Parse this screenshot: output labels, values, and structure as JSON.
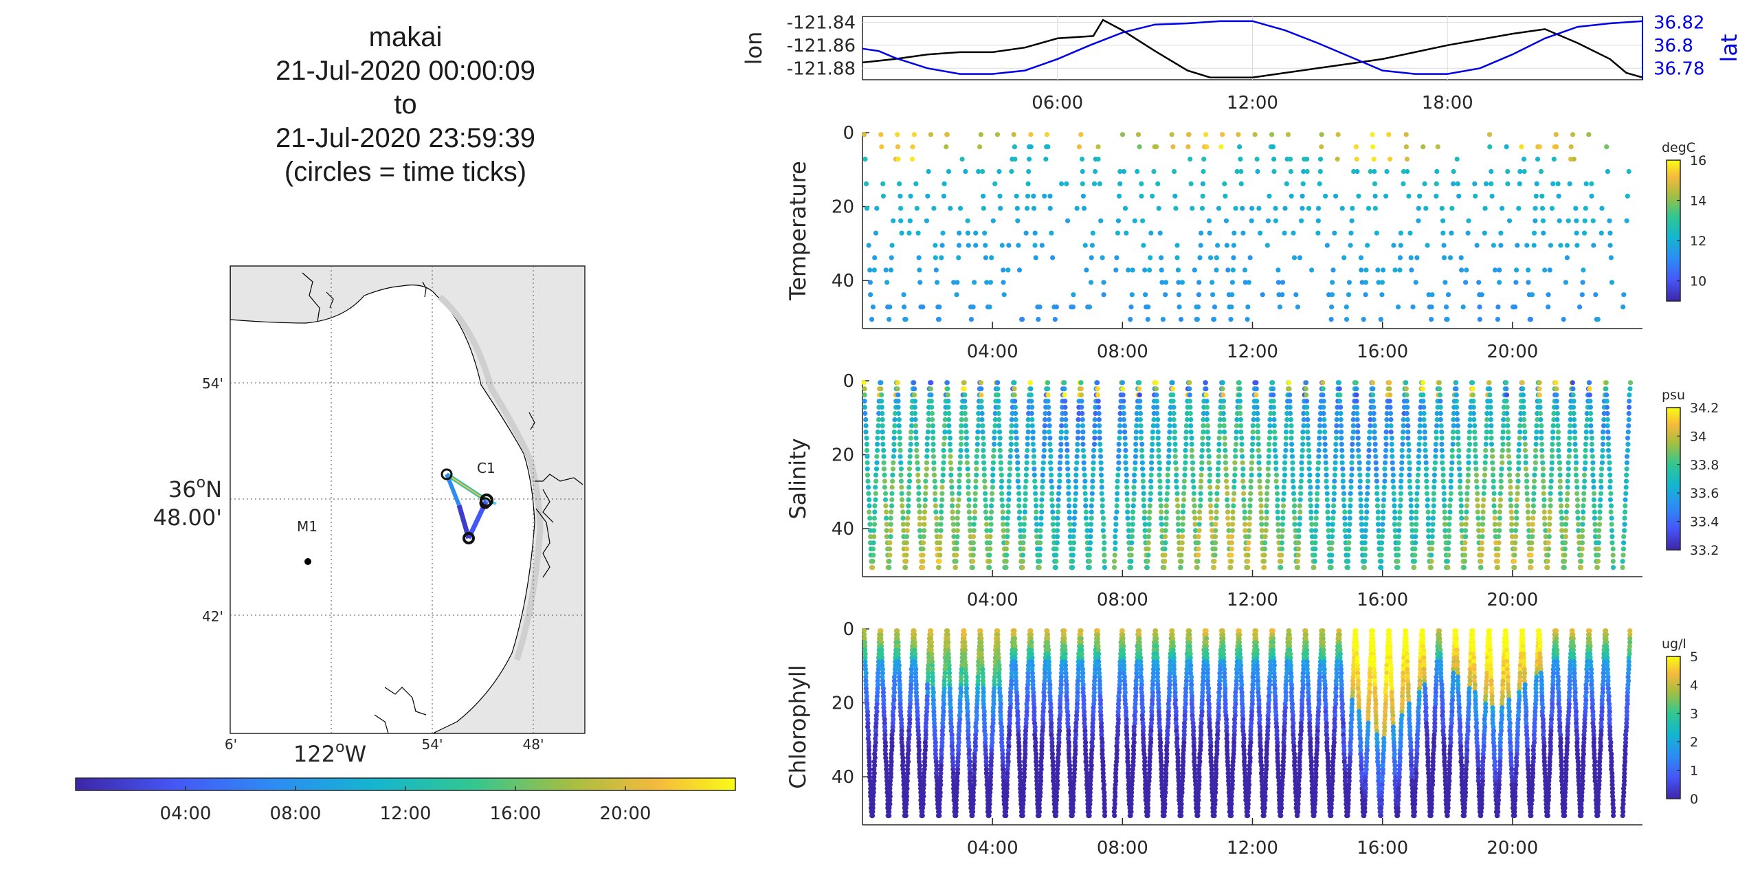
{
  "title_lines": [
    "makai",
    "21-Jul-2020 00:00:09",
    "to",
    "21-Jul-2020 23:59:39",
    "(circles = time ticks)"
  ],
  "map": {
    "lat_ticks": [
      "54'",
      "48.00'",
      "42'"
    ],
    "lat_main_label": "36",
    "lat_main_suffix": "N",
    "lat_deg_symbol": "o",
    "lon_ticks": [
      "6'",
      "54'",
      "48'"
    ],
    "lon_main_label": "122",
    "lon_main_suffix": "W",
    "lon_deg_symbol": "o",
    "stations": [
      {
        "name": "M1"
      },
      {
        "name": "C1"
      }
    ],
    "colorbar_ticks": [
      "04:00",
      "08:00",
      "12:00",
      "16:00",
      "20:00"
    ],
    "colors": {
      "land": "#e6e6e6",
      "water": "#ffffff",
      "coast": "#000000"
    }
  },
  "chart_data": [
    {
      "type": "line",
      "id": "lonlat",
      "xlabel": "",
      "ylabel": "lon",
      "ylabel_right": "lat",
      "x_range_hours": [
        0,
        24
      ],
      "x_ticks": [
        "06:00",
        "12:00",
        "18:00"
      ],
      "y_left_ticks": [
        "-121.84",
        "-121.86",
        "-121.88"
      ],
      "y_left_lim": [
        -121.89,
        -121.835
      ],
      "y_right_ticks": [
        "36.82",
        "36.8",
        "36.78"
      ],
      "y_right_lim": [
        36.77,
        36.825
      ],
      "grid": true,
      "series": [
        {
          "name": "lon",
          "color": "#000000",
          "x": [
            0,
            1,
            2,
            3,
            4,
            5,
            6,
            7.1,
            7.4,
            8,
            9,
            10,
            10.7,
            11,
            12,
            13,
            14,
            15,
            16,
            17,
            18,
            19,
            20,
            21,
            22,
            23,
            23.5,
            24
          ],
          "y": [
            -121.875,
            -121.872,
            -121.868,
            -121.866,
            -121.866,
            -121.862,
            -121.854,
            -121.852,
            -121.838,
            -121.847,
            -121.865,
            -121.882,
            -121.888,
            -121.888,
            -121.888,
            -121.884,
            -121.88,
            -121.876,
            -121.872,
            -121.866,
            -121.86,
            -121.855,
            -121.85,
            -121.846,
            -121.858,
            -121.872,
            -121.884,
            -121.888
          ]
        },
        {
          "name": "lat",
          "color": "#0000e6",
          "x": [
            0,
            0.5,
            1,
            2,
            3,
            4,
            5,
            6,
            7,
            8,
            9,
            10,
            11,
            12,
            13,
            14,
            15,
            16,
            17,
            18,
            19,
            20,
            21,
            22,
            23,
            24
          ],
          "y": [
            36.797,
            36.795,
            36.789,
            36.78,
            36.775,
            36.775,
            36.778,
            36.788,
            36.8,
            36.811,
            36.818,
            36.819,
            36.821,
            36.821,
            36.813,
            36.802,
            36.79,
            36.778,
            36.775,
            36.775,
            36.78,
            36.792,
            36.806,
            36.816,
            36.819,
            36.821
          ]
        }
      ]
    },
    {
      "type": "scatter",
      "id": "temperature",
      "xlabel": "",
      "ylabel": "Temperature",
      "x_range_hours": [
        0,
        24
      ],
      "x_ticks": [
        "04:00",
        "08:00",
        "12:00",
        "16:00",
        "20:00"
      ],
      "y_ticks": [
        "0",
        "20",
        "40"
      ],
      "ylim": [
        0,
        53
      ],
      "y_reversed": true,
      "color_label": "degC",
      "color_range": [
        9,
        16
      ],
      "color_ticks": [
        "16",
        "14",
        "12",
        "10"
      ]
    },
    {
      "type": "scatter",
      "id": "salinity",
      "xlabel": "",
      "ylabel": "Salinity",
      "x_range_hours": [
        0,
        24
      ],
      "x_ticks": [
        "04:00",
        "08:00",
        "12:00",
        "16:00",
        "20:00"
      ],
      "y_ticks": [
        "0",
        "20",
        "40"
      ],
      "ylim": [
        0,
        53
      ],
      "y_reversed": true,
      "color_label": "psu",
      "color_range": [
        33.2,
        34.2
      ],
      "color_ticks": [
        "34.2",
        "34",
        "33.8",
        "33.6",
        "33.4",
        "33.2"
      ]
    },
    {
      "type": "scatter",
      "id": "chlorophyll",
      "xlabel": "",
      "ylabel": "Chlorophyll",
      "x_range_hours": [
        0,
        24
      ],
      "x_ticks": [
        "04:00",
        "08:00",
        "12:00",
        "16:00",
        "20:00"
      ],
      "y_ticks": [
        "0",
        "20",
        "40"
      ],
      "ylim": [
        0,
        53
      ],
      "y_reversed": true,
      "color_label": "ug/l",
      "color_range": [
        0,
        5
      ],
      "color_ticks": [
        "5",
        "4",
        "3",
        "2",
        "1",
        "0"
      ]
    }
  ]
}
